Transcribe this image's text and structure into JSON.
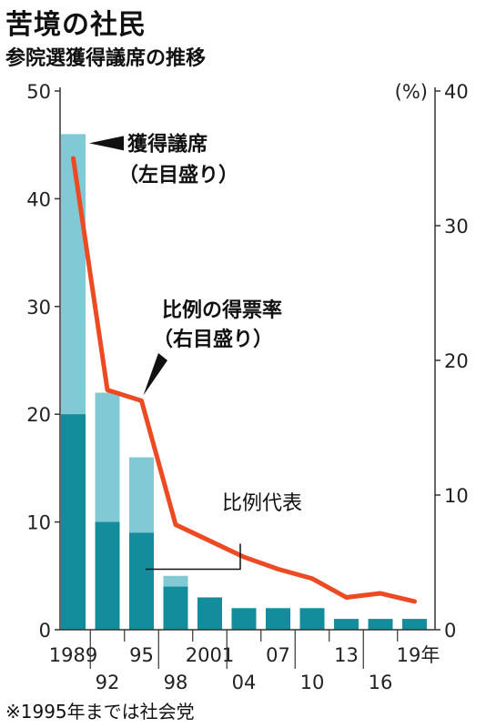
{
  "title": "苦境の社民",
  "subtitle": "参院選獲得議席の推移",
  "footnote": "※1995年までは社会党",
  "colors": {
    "seats_total": "#82c9d6",
    "proportional": "#138d9c",
    "vote_share_line": "#ec4a22",
    "axis": "#333333"
  },
  "chart_data": {
    "type": "bar",
    "categories": [
      "1989",
      "92",
      "95",
      "98",
      "2001",
      "04",
      "07",
      "10",
      "13",
      "16",
      "19年"
    ],
    "series": [
      {
        "name": "獲得議席",
        "axis": "left",
        "values": [
          46,
          22,
          16,
          5,
          3,
          2,
          2,
          2,
          1,
          1,
          1
        ]
      },
      {
        "name": "比例代表",
        "axis": "left",
        "values": [
          20,
          10,
          9,
          4,
          3,
          2,
          2,
          2,
          1,
          1,
          1
        ]
      },
      {
        "name": "比例の得票率",
        "axis": "right",
        "type": "line",
        "values": [
          35.0,
          17.8,
          17.0,
          7.8,
          6.6,
          5.4,
          4.5,
          3.8,
          2.4,
          2.7,
          2.1
        ]
      }
    ],
    "left_axis": {
      "ylim": [
        0,
        50
      ],
      "ticks": [
        "0",
        "10",
        "20",
        "30",
        "40",
        "50"
      ]
    },
    "right_axis": {
      "ylim": [
        0,
        40
      ],
      "unit": "(%)",
      "ticks": [
        "0",
        "10",
        "20",
        "30",
        "40"
      ]
    },
    "annotations": {
      "seats_line1": "獲得議席",
      "seats_line2": "（左目盛り）",
      "rate_line1": "比例の得票率",
      "rate_line2": "（右目盛り）",
      "proportional": "比例代表"
    }
  }
}
